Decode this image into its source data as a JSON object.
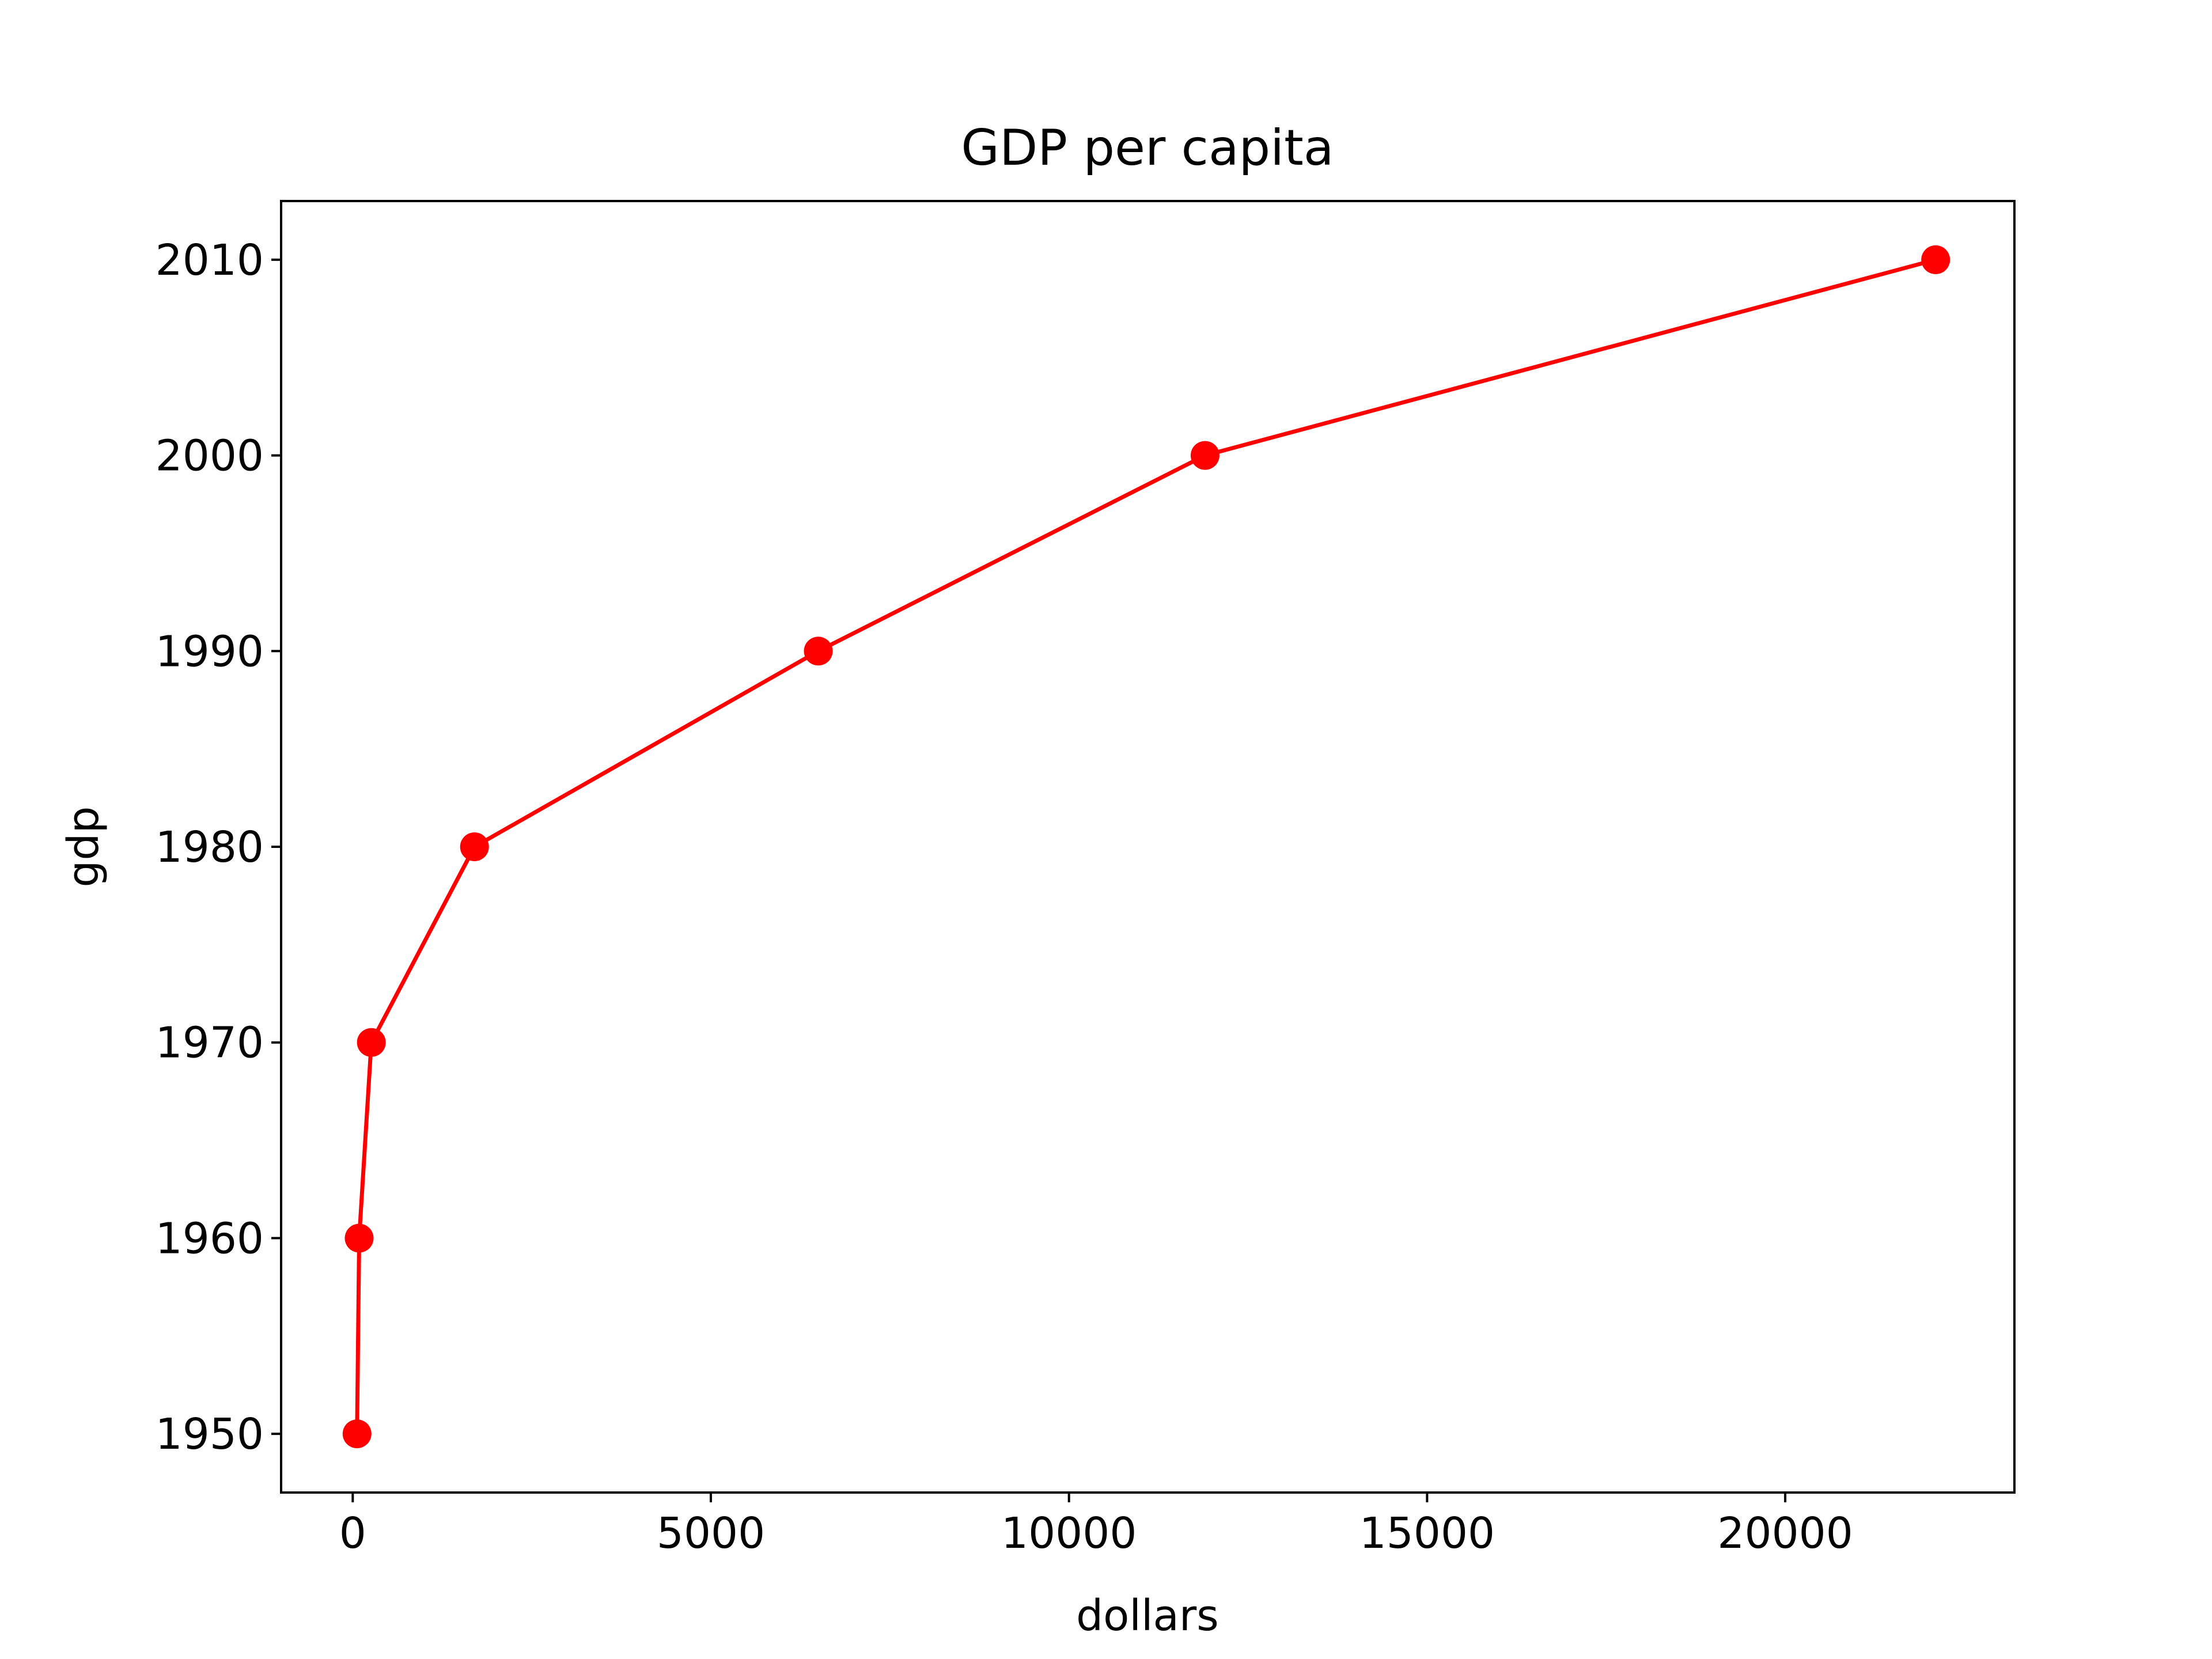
{
  "chart_data": {
    "type": "line",
    "title": "GDP per capita",
    "xlabel": "dollars",
    "ylabel": "gdp",
    "xlim": [
      -1000,
      23200
    ],
    "ylim": [
      1947,
      2013
    ],
    "xticks": [
      0,
      5000,
      10000,
      15000,
      20000
    ],
    "xtick_labels": [
      "0",
      "5000",
      "10000",
      "15000",
      "20000"
    ],
    "yticks": [
      1950,
      1960,
      1970,
      1980,
      1990,
      2000,
      2010
    ],
    "ytick_labels": [
      "1950",
      "1960",
      "1970",
      "1980",
      "1990",
      "2000",
      "2010"
    ],
    "grid": false,
    "series": [
      {
        "color": "#ff0000",
        "marker": "circle",
        "points": [
          {
            "x": 60,
            "y": 1950
          },
          {
            "x": 90,
            "y": 1960
          },
          {
            "x": 260,
            "y": 1970
          },
          {
            "x": 1700,
            "y": 1980
          },
          {
            "x": 6500,
            "y": 1990
          },
          {
            "x": 11900,
            "y": 2000
          },
          {
            "x": 22100,
            "y": 2010
          }
        ]
      }
    ]
  }
}
